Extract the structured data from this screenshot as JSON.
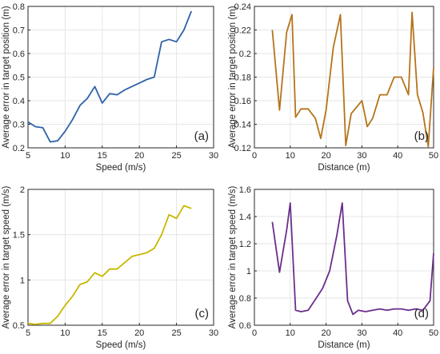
{
  "chart_data": [
    {
      "id": "a",
      "type": "line",
      "panel_label": "(a)",
      "xlabel": "Speed (m/s)",
      "ylabel": "Average error in target position (m)",
      "xlim": [
        5,
        30
      ],
      "ylim": [
        0.2,
        0.8
      ],
      "xticks": [
        5,
        10,
        15,
        20,
        25,
        30
      ],
      "yticks": [
        0.2,
        0.3,
        0.4,
        0.5,
        0.6,
        0.7,
        0.8
      ],
      "grid": true,
      "color": "#2e63a8",
      "x": [
        5,
        6,
        7,
        8,
        9,
        10,
        11,
        12,
        13,
        14,
        15,
        16,
        17,
        18,
        19,
        20,
        21,
        22,
        23,
        24,
        25,
        26,
        27
      ],
      "y": [
        0.31,
        0.29,
        0.285,
        0.225,
        0.23,
        0.27,
        0.32,
        0.38,
        0.41,
        0.46,
        0.39,
        0.43,
        0.425,
        0.445,
        0.46,
        0.475,
        0.49,
        0.5,
        0.65,
        0.66,
        0.65,
        0.7,
        0.78
      ]
    },
    {
      "id": "b",
      "type": "line",
      "panel_label": "(b)",
      "xlabel": "Distance (m)",
      "ylabel": "Average error in target position (m)",
      "xlim": [
        0,
        50
      ],
      "ylim": [
        0.12,
        0.24
      ],
      "xticks": [
        0,
        10,
        20,
        30,
        40,
        50
      ],
      "yticks": [
        0.12,
        0.14,
        0.16,
        0.18,
        0.2,
        0.22,
        0.24
      ],
      "grid": true,
      "color": "#b5741a",
      "x": [
        5,
        7,
        9,
        10.5,
        11.5,
        13,
        15,
        17,
        18.5,
        20,
        22,
        24,
        25.5,
        27,
        30,
        31.5,
        33,
        35,
        37,
        39,
        41,
        43,
        44,
        45.5,
        47,
        48.5,
        50
      ],
      "y": [
        0.22,
        0.152,
        0.218,
        0.233,
        0.146,
        0.153,
        0.153,
        0.145,
        0.128,
        0.152,
        0.205,
        0.233,
        0.122,
        0.149,
        0.16,
        0.138,
        0.145,
        0.165,
        0.165,
        0.18,
        0.18,
        0.165,
        0.235,
        0.165,
        0.15,
        0.121,
        0.188
      ]
    },
    {
      "id": "c",
      "type": "line",
      "panel_label": "(c)",
      "xlabel": "Speed (m/s)",
      "ylabel": "Average error in target speed (m/s)",
      "xlim": [
        5,
        30
      ],
      "ylim": [
        0.5,
        2
      ],
      "xticks": [
        5,
        10,
        15,
        20,
        25,
        30
      ],
      "yticks": [
        0.5,
        1,
        1.5,
        2
      ],
      "grid": true,
      "color": "#c8b800",
      "x": [
        5,
        6,
        7,
        8,
        9,
        10,
        11,
        12,
        13,
        14,
        15,
        16,
        17,
        18,
        19,
        20,
        21,
        22,
        23,
        24,
        25,
        26,
        27
      ],
      "y": [
        0.52,
        0.51,
        0.52,
        0.52,
        0.6,
        0.72,
        0.82,
        0.95,
        0.98,
        1.08,
        1.04,
        1.12,
        1.12,
        1.19,
        1.26,
        1.28,
        1.3,
        1.35,
        1.5,
        1.72,
        1.68,
        1.82,
        1.79
      ]
    },
    {
      "id": "d",
      "type": "line",
      "panel_label": "(d)",
      "xlabel": "Distance (m)",
      "ylabel": "Average error in target speed (m/s)",
      "xlim": [
        0,
        50
      ],
      "ylim": [
        0.6,
        1.6
      ],
      "xticks": [
        0,
        10,
        20,
        30,
        40,
        50
      ],
      "yticks": [
        0.6,
        0.8,
        1,
        1.2,
        1.4,
        1.6
      ],
      "grid": true,
      "color": "#6a2e8c",
      "x": [
        5,
        7,
        9,
        10,
        11.5,
        13,
        15,
        17,
        19,
        21,
        23,
        24.5,
        26,
        27.5,
        29,
        31,
        33,
        35,
        37,
        39,
        41,
        43,
        45,
        47,
        49,
        50
      ],
      "y": [
        1.36,
        0.99,
        1.3,
        1.5,
        0.71,
        0.7,
        0.71,
        0.79,
        0.87,
        1.0,
        1.26,
        1.5,
        0.78,
        0.68,
        0.71,
        0.7,
        0.71,
        0.72,
        0.71,
        0.72,
        0.72,
        0.71,
        0.72,
        0.71,
        0.78,
        1.13
      ]
    }
  ]
}
